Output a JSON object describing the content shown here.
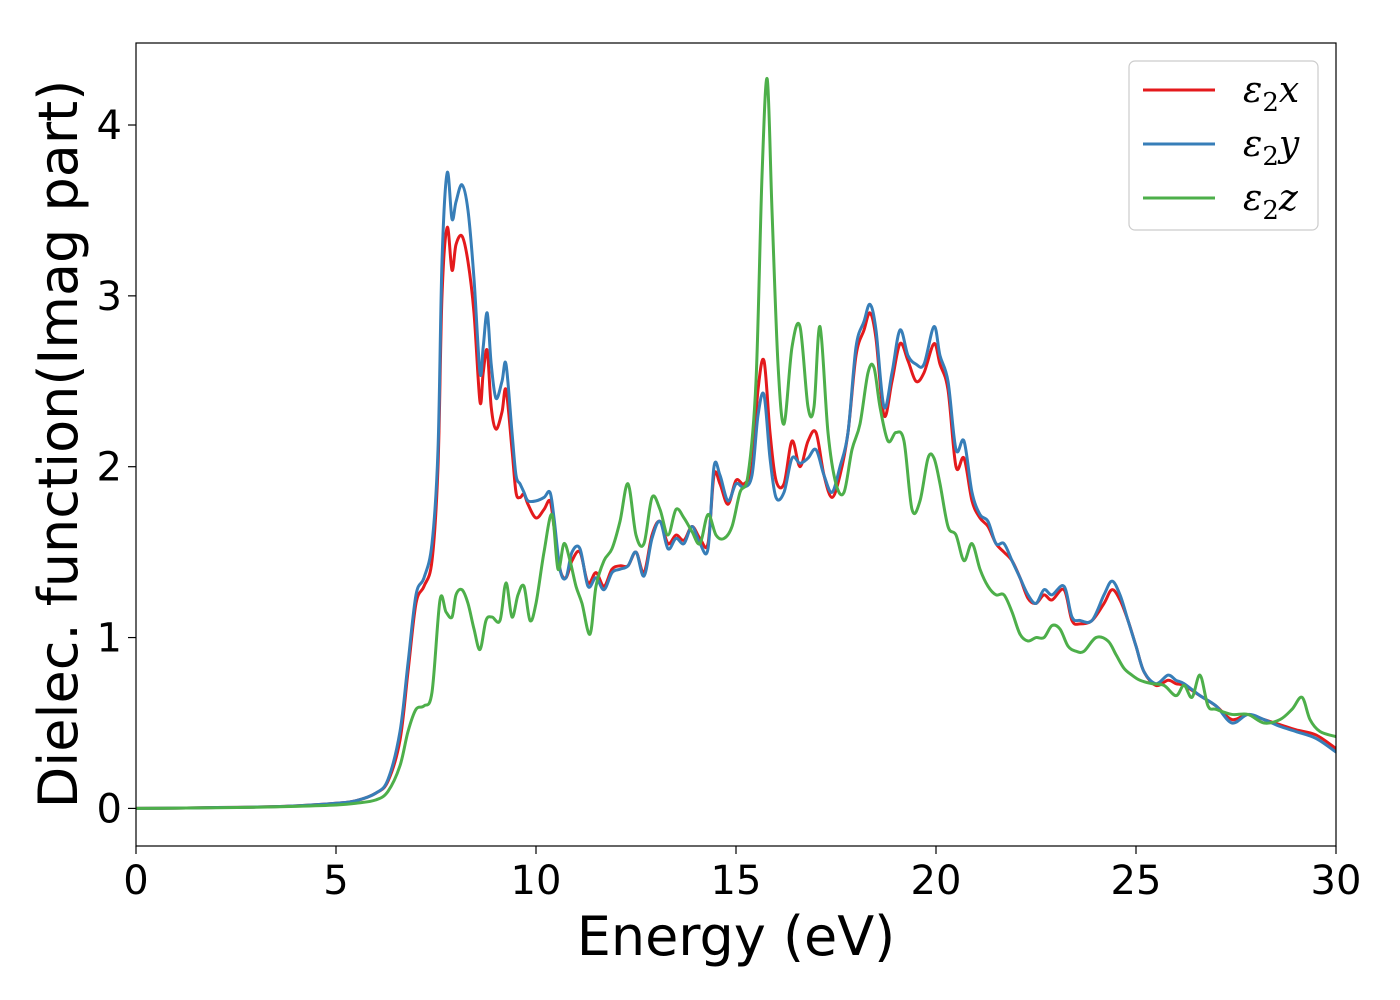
{
  "chart_data": {
    "type": "line",
    "xlabel": "Energy (eV)",
    "ylabel": "Dielec. function(Imag part)",
    "xlim": [
      0,
      30
    ],
    "ylim": [
      -0.22,
      4.48
    ],
    "xticks": [
      0,
      5,
      10,
      15,
      20,
      25,
      30
    ],
    "yticks": [
      0,
      1,
      2,
      3,
      4
    ],
    "grid": false,
    "legend_position": "top-right",
    "series": [
      {
        "name": "ε2x",
        "legend_base": "ε",
        "legend_sub": "2",
        "legend_suffix": "x",
        "color": "#e41a1c",
        "x": [
          0,
          1,
          2,
          3,
          4,
          5,
          5.5,
          6,
          6.3,
          6.6,
          6.8,
          7,
          7.2,
          7.4,
          7.55,
          7.65,
          7.78,
          7.9,
          8.0,
          8.15,
          8.3,
          8.45,
          8.6,
          8.68,
          8.78,
          8.88,
          9.0,
          9.15,
          9.25,
          9.4,
          9.5,
          9.6,
          9.7,
          9.8,
          10.0,
          10.2,
          10.35,
          10.45,
          10.6,
          10.75,
          10.9,
          11.1,
          11.3,
          11.5,
          11.7,
          11.9,
          12.1,
          12.3,
          12.5,
          12.7,
          12.9,
          13.1,
          13.3,
          13.5,
          13.7,
          13.9,
          14.1,
          14.3,
          14.45,
          14.6,
          14.8,
          15.0,
          15.2,
          15.4,
          15.55,
          15.7,
          15.85,
          16.0,
          16.2,
          16.4,
          16.6,
          16.8,
          17.0,
          17.2,
          17.4,
          17.6,
          17.8,
          18.0,
          18.2,
          18.35,
          18.5,
          18.7,
          18.9,
          19.1,
          19.3,
          19.5,
          19.7,
          19.95,
          20.1,
          20.3,
          20.5,
          20.7,
          20.9,
          21.1,
          21.3,
          21.5,
          21.7,
          21.9,
          22.1,
          22.3,
          22.5,
          22.7,
          22.9,
          23.2,
          23.4,
          23.6,
          23.9,
          24.2,
          24.4,
          24.6,
          24.8,
          25.0,
          25.2,
          25.5,
          25.8,
          26.0,
          26.2,
          26.6,
          27.0,
          27.4,
          27.8,
          28.2,
          28.6,
          29.0,
          29.5,
          30.0
        ],
        "y": [
          0,
          0.002,
          0.005,
          0.008,
          0.015,
          0.03,
          0.045,
          0.09,
          0.16,
          0.4,
          0.8,
          1.2,
          1.3,
          1.45,
          2.0,
          3.0,
          3.4,
          3.15,
          3.3,
          3.35,
          3.2,
          2.9,
          2.38,
          2.55,
          2.68,
          2.35,
          2.22,
          2.32,
          2.45,
          2.1,
          1.85,
          1.82,
          1.84,
          1.78,
          1.7,
          1.75,
          1.8,
          1.65,
          1.4,
          1.35,
          1.45,
          1.5,
          1.32,
          1.38,
          1.3,
          1.4,
          1.42,
          1.42,
          1.5,
          1.38,
          1.6,
          1.68,
          1.55,
          1.6,
          1.57,
          1.65,
          1.58,
          1.55,
          1.95,
          1.9,
          1.78,
          1.92,
          1.9,
          2.0,
          2.45,
          2.62,
          2.2,
          1.92,
          1.9,
          2.15,
          2.0,
          2.15,
          2.2,
          1.95,
          1.82,
          1.95,
          2.2,
          2.65,
          2.8,
          2.9,
          2.75,
          2.3,
          2.5,
          2.72,
          2.62,
          2.5,
          2.55,
          2.72,
          2.6,
          2.45,
          2.0,
          2.05,
          1.8,
          1.7,
          1.65,
          1.55,
          1.5,
          1.45,
          1.35,
          1.23,
          1.2,
          1.25,
          1.22,
          1.28,
          1.1,
          1.08,
          1.1,
          1.2,
          1.28,
          1.22,
          1.1,
          0.95,
          0.8,
          0.72,
          0.75,
          0.73,
          0.72,
          0.66,
          0.6,
          0.52,
          0.55,
          0.52,
          0.49,
          0.46,
          0.43,
          0.35
        ]
      },
      {
        "name": "ε2y",
        "legend_base": "ε",
        "legend_sub": "2",
        "legend_suffix": "y",
        "color": "#377eb8",
        "x": [
          0,
          1,
          2,
          3,
          4,
          5,
          5.5,
          6,
          6.3,
          6.6,
          6.8,
          7,
          7.2,
          7.4,
          7.55,
          7.65,
          7.78,
          7.9,
          8.0,
          8.15,
          8.3,
          8.45,
          8.6,
          8.68,
          8.78,
          8.88,
          9.0,
          9.15,
          9.25,
          9.4,
          9.5,
          9.6,
          9.7,
          9.8,
          10.0,
          10.2,
          10.35,
          10.45,
          10.6,
          10.75,
          10.9,
          11.1,
          11.3,
          11.5,
          11.7,
          11.9,
          12.1,
          12.3,
          12.5,
          12.7,
          12.9,
          13.1,
          13.3,
          13.5,
          13.7,
          13.9,
          14.1,
          14.3,
          14.45,
          14.6,
          14.8,
          15.0,
          15.2,
          15.4,
          15.55,
          15.7,
          15.85,
          16.0,
          16.2,
          16.4,
          16.6,
          16.8,
          17.0,
          17.2,
          17.4,
          17.6,
          17.8,
          18.0,
          18.2,
          18.35,
          18.5,
          18.7,
          18.9,
          19.1,
          19.3,
          19.5,
          19.7,
          19.95,
          20.1,
          20.3,
          20.5,
          20.7,
          20.9,
          21.1,
          21.3,
          21.5,
          21.7,
          21.9,
          22.1,
          22.3,
          22.5,
          22.7,
          22.9,
          23.2,
          23.4,
          23.6,
          23.9,
          24.2,
          24.4,
          24.6,
          24.8,
          25.0,
          25.2,
          25.5,
          25.8,
          26.0,
          26.2,
          26.6,
          27.0,
          27.4,
          27.8,
          28.2,
          28.6,
          29.0,
          29.5,
          30.0
        ],
        "y": [
          0,
          0.002,
          0.005,
          0.008,
          0.015,
          0.03,
          0.045,
          0.09,
          0.17,
          0.45,
          0.85,
          1.25,
          1.35,
          1.55,
          2.1,
          3.2,
          3.72,
          3.45,
          3.55,
          3.65,
          3.5,
          3.1,
          2.55,
          2.7,
          2.9,
          2.6,
          2.4,
          2.5,
          2.6,
          2.2,
          1.95,
          1.9,
          1.85,
          1.8,
          1.8,
          1.82,
          1.85,
          1.7,
          1.4,
          1.35,
          1.5,
          1.52,
          1.3,
          1.35,
          1.28,
          1.38,
          1.4,
          1.42,
          1.5,
          1.36,
          1.58,
          1.68,
          1.52,
          1.58,
          1.55,
          1.65,
          1.55,
          1.52,
          2.0,
          1.95,
          1.8,
          1.9,
          1.88,
          1.95,
          2.3,
          2.42,
          2.05,
          1.82,
          1.85,
          2.05,
          2.02,
          2.05,
          2.1,
          1.95,
          1.85,
          2.0,
          2.2,
          2.7,
          2.85,
          2.95,
          2.8,
          2.35,
          2.55,
          2.8,
          2.65,
          2.6,
          2.6,
          2.82,
          2.65,
          2.5,
          2.1,
          2.15,
          1.85,
          1.72,
          1.68,
          1.55,
          1.55,
          1.45,
          1.35,
          1.25,
          1.2,
          1.28,
          1.25,
          1.3,
          1.12,
          1.1,
          1.1,
          1.25,
          1.33,
          1.25,
          1.1,
          0.95,
          0.8,
          0.73,
          0.78,
          0.75,
          0.73,
          0.66,
          0.6,
          0.5,
          0.55,
          0.52,
          0.48,
          0.45,
          0.41,
          0.33
        ]
      },
      {
        "name": "ε2z",
        "legend_base": "ε",
        "legend_sub": "2",
        "legend_suffix": "z",
        "color": "#4daf4a",
        "x": [
          0,
          1,
          2,
          3,
          4,
          5,
          5.5,
          6,
          6.3,
          6.6,
          6.8,
          7.0,
          7.2,
          7.4,
          7.6,
          7.75,
          7.9,
          8.0,
          8.15,
          8.3,
          8.45,
          8.6,
          8.75,
          8.9,
          9.1,
          9.25,
          9.4,
          9.55,
          9.7,
          9.85,
          10.0,
          10.2,
          10.4,
          10.55,
          10.7,
          10.85,
          11.0,
          11.15,
          11.35,
          11.5,
          11.7,
          11.9,
          12.1,
          12.3,
          12.5,
          12.7,
          12.9,
          13.1,
          13.3,
          13.5,
          13.7,
          13.9,
          14.1,
          14.3,
          14.5,
          14.7,
          14.9,
          15.1,
          15.3,
          15.5,
          15.65,
          15.78,
          15.9,
          16.05,
          16.2,
          16.4,
          16.6,
          16.8,
          16.95,
          17.1,
          17.3,
          17.5,
          17.7,
          17.9,
          18.1,
          18.3,
          18.45,
          18.6,
          18.8,
          19.0,
          19.2,
          19.4,
          19.6,
          19.8,
          19.95,
          20.1,
          20.3,
          20.5,
          20.7,
          20.9,
          21.1,
          21.3,
          21.5,
          21.7,
          21.9,
          22.1,
          22.3,
          22.5,
          22.7,
          22.9,
          23.1,
          23.3,
          23.5,
          23.7,
          24.0,
          24.3,
          24.5,
          24.7,
          24.9,
          25.1,
          25.4,
          25.7,
          26.0,
          26.2,
          26.4,
          26.6,
          26.8,
          27.0,
          27.4,
          27.8,
          28.2,
          28.6,
          28.9,
          29.15,
          29.35,
          29.6,
          30.0
        ],
        "y": [
          0,
          0.002,
          0.004,
          0.007,
          0.012,
          0.02,
          0.03,
          0.05,
          0.1,
          0.25,
          0.45,
          0.58,
          0.6,
          0.68,
          1.22,
          1.15,
          1.12,
          1.25,
          1.28,
          1.2,
          1.05,
          0.93,
          1.1,
          1.12,
          1.1,
          1.32,
          1.12,
          1.25,
          1.3,
          1.1,
          1.2,
          1.5,
          1.72,
          1.4,
          1.55,
          1.45,
          1.3,
          1.2,
          1.02,
          1.3,
          1.45,
          1.52,
          1.68,
          1.9,
          1.6,
          1.55,
          1.82,
          1.75,
          1.6,
          1.75,
          1.7,
          1.62,
          1.55,
          1.72,
          1.6,
          1.58,
          1.65,
          1.85,
          1.95,
          2.5,
          3.7,
          4.27,
          3.5,
          2.6,
          2.25,
          2.7,
          2.82,
          2.35,
          2.35,
          2.82,
          2.2,
          1.9,
          1.85,
          2.1,
          2.25,
          2.55,
          2.58,
          2.35,
          2.15,
          2.2,
          2.15,
          1.75,
          1.8,
          2.05,
          2.05,
          1.9,
          1.65,
          1.6,
          1.45,
          1.55,
          1.4,
          1.3,
          1.25,
          1.25,
          1.15,
          1.02,
          0.98,
          1.0,
          1.0,
          1.07,
          1.05,
          0.95,
          0.92,
          0.92,
          1.0,
          0.98,
          0.9,
          0.82,
          0.78,
          0.75,
          0.73,
          0.72,
          0.66,
          0.72,
          0.65,
          0.78,
          0.6,
          0.58,
          0.55,
          0.55,
          0.5,
          0.52,
          0.58,
          0.65,
          0.52,
          0.45,
          0.42
        ]
      }
    ]
  }
}
